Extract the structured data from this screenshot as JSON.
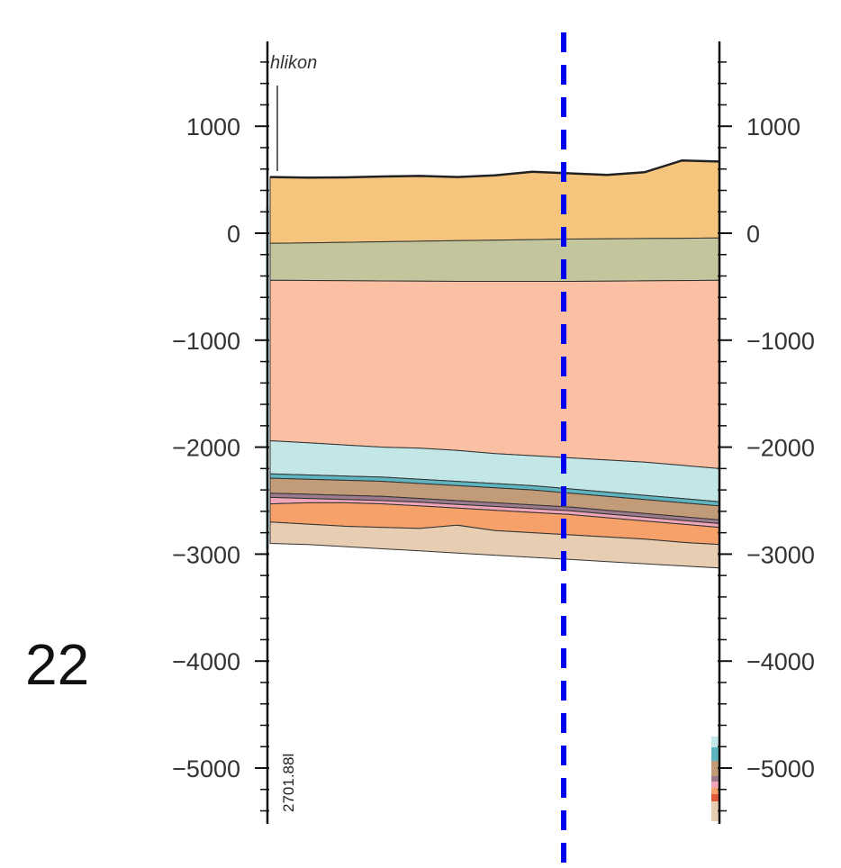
{
  "panel_number": "22",
  "place_label": "hlikon",
  "well_label": "2701.88l",
  "axis": {
    "ticks": [
      1000,
      0,
      -1000,
      -2000,
      -3000,
      -4000,
      -5000
    ],
    "tick_labels": [
      "1000",
      "0",
      "−1000",
      "−2000",
      "−3000",
      "−4000",
      "−5000"
    ],
    "range": [
      1800,
      -5500
    ],
    "minor_step": 200
  },
  "section_line": {
    "color": "#0000ee",
    "style": "dashed"
  },
  "layers": [
    {
      "name": "layer-1",
      "color": "#f5c57e",
      "top": [
        525,
        520,
        522,
        530,
        535,
        525,
        540,
        575,
        560,
        545,
        570,
        680,
        670
      ],
      "bottom": [
        -95,
        -90,
        -85,
        -80,
        -75,
        -70,
        -65,
        -60,
        -55,
        -52,
        -50,
        -48,
        -45
      ]
    },
    {
      "name": "layer-2",
      "color": "#c3c59c",
      "top": [
        -95,
        -90,
        -85,
        -80,
        -75,
        -70,
        -65,
        -60,
        -55,
        -52,
        -50,
        -48,
        -45
      ],
      "bottom": [
        -440,
        -442,
        -444,
        -446,
        -448,
        -450,
        -450,
        -450,
        -450,
        -448,
        -445,
        -443,
        -440
      ]
    },
    {
      "name": "layer-3",
      "color": "#fbbfa3",
      "top": [
        -440,
        -442,
        -444,
        -446,
        -448,
        -450,
        -450,
        -450,
        -450,
        -448,
        -445,
        -443,
        -440
      ],
      "bottom": [
        -1940,
        -1960,
        -1980,
        -2000,
        -2010,
        -2030,
        -2060,
        -2080,
        -2100,
        -2120,
        -2140,
        -2170,
        -2200
      ]
    },
    {
      "name": "layer-4",
      "color": "#c3e6e6",
      "top": [
        -1940,
        -1960,
        -1980,
        -2000,
        -2010,
        -2030,
        -2060,
        -2080,
        -2100,
        -2120,
        -2140,
        -2170,
        -2200
      ],
      "bottom": [
        -2250,
        -2260,
        -2270,
        -2280,
        -2300,
        -2320,
        -2340,
        -2360,
        -2390,
        -2420,
        -2450,
        -2480,
        -2510
      ]
    },
    {
      "name": "layer-5",
      "color": "#5fb5bf",
      "top": [
        -2250,
        -2260,
        -2270,
        -2280,
        -2300,
        -2320,
        -2340,
        -2360,
        -2390,
        -2420,
        -2450,
        -2480,
        -2510
      ],
      "bottom": [
        -2290,
        -2300,
        -2310,
        -2320,
        -2340,
        -2360,
        -2380,
        -2400,
        -2430,
        -2460,
        -2490,
        -2520,
        -2550
      ]
    },
    {
      "name": "layer-6",
      "color": "#c29b79",
      "top": [
        -2290,
        -2300,
        -2310,
        -2320,
        -2340,
        -2360,
        -2380,
        -2400,
        -2430,
        -2460,
        -2490,
        -2520,
        -2550
      ],
      "bottom": [
        -2430,
        -2440,
        -2450,
        -2460,
        -2480,
        -2500,
        -2520,
        -2540,
        -2560,
        -2590,
        -2620,
        -2650,
        -2680
      ]
    },
    {
      "name": "layer-7",
      "color": "#9c7a8e",
      "top": [
        -2430,
        -2440,
        -2450,
        -2460,
        -2480,
        -2500,
        -2520,
        -2540,
        -2560,
        -2590,
        -2620,
        -2650,
        -2680
      ],
      "bottom": [
        -2470,
        -2480,
        -2490,
        -2500,
        -2515,
        -2535,
        -2555,
        -2575,
        -2595,
        -2625,
        -2655,
        -2685,
        -2715
      ]
    },
    {
      "name": "layer-8",
      "color": "#f0a6b8",
      "top": [
        -2470,
        -2480,
        -2490,
        -2500,
        -2515,
        -2535,
        -2555,
        -2575,
        -2595,
        -2625,
        -2655,
        -2685,
        -2715
      ],
      "bottom": [
        -2530,
        -2520,
        -2520,
        -2530,
        -2550,
        -2570,
        -2590,
        -2610,
        -2630,
        -2660,
        -2690,
        -2720,
        -2750
      ]
    },
    {
      "name": "layer-9",
      "color": "#f6a06a",
      "top": [
        -2530,
        -2520,
        -2520,
        -2530,
        -2550,
        -2570,
        -2590,
        -2610,
        -2630,
        -2660,
        -2690,
        -2720,
        -2750
      ],
      "bottom": [
        -2700,
        -2720,
        -2740,
        -2750,
        -2760,
        -2730,
        -2780,
        -2800,
        -2820,
        -2840,
        -2860,
        -2890,
        -2910
      ]
    },
    {
      "name": "layer-10",
      "color": "#e7cdb1",
      "top": [
        -2700,
        -2720,
        -2740,
        -2750,
        -2760,
        -2730,
        -2780,
        -2800,
        -2820,
        -2840,
        -2860,
        -2890,
        -2910
      ],
      "bottom": [
        -2900,
        -2910,
        -2930,
        -2950,
        -2970,
        -2990,
        -3010,
        -3030,
        -3050,
        -3070,
        -3090,
        -3110,
        -3130
      ]
    }
  ]
}
